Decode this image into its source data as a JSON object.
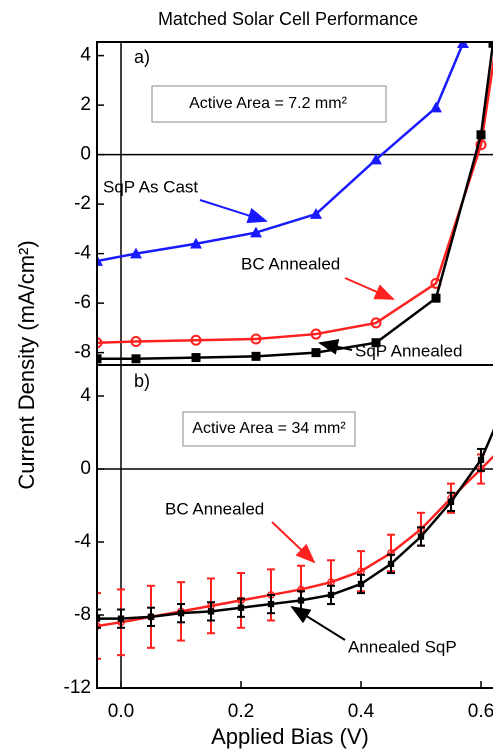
{
  "chart_data": [
    {
      "type": "line",
      "title": "Matched Solar Cell Performance",
      "ylabel": "Current Density (mA/cm²)",
      "annotations": [
        "a)",
        "Active Area = 7.2 mm²"
      ],
      "xlim": [
        -0.04,
        0.62
      ],
      "ylim": [
        -8.5,
        4.55
      ],
      "yticks": [
        -8,
        -6,
        -4,
        -2,
        0,
        2,
        4
      ],
      "series": [
        {
          "name": "SqP As Cast",
          "color": "#1a1aff",
          "marker": "triangle",
          "x": [
            -0.04,
            0.025,
            0.125,
            0.225,
            0.325,
            0.425,
            0.525,
            0.57
          ],
          "values": [
            -4.3,
            -4.0,
            -3.6,
            -3.15,
            -2.4,
            -0.2,
            1.9,
            4.5
          ]
        },
        {
          "name": "BC Annealed",
          "color": "#ff2020",
          "marker": "circle",
          "x": [
            -0.04,
            0.025,
            0.125,
            0.225,
            0.325,
            0.425,
            0.525,
            0.6,
            0.625
          ],
          "values": [
            -7.6,
            -7.55,
            -7.5,
            -7.45,
            -7.25,
            -6.8,
            -5.2,
            0.4,
            4.4
          ]
        },
        {
          "name": "SqP Annealed",
          "color": "#000000",
          "marker": "square",
          "x": [
            -0.04,
            0.025,
            0.125,
            0.225,
            0.325,
            0.425,
            0.525,
            0.6,
            0.62
          ],
          "values": [
            -8.25,
            -8.25,
            -8.2,
            -8.15,
            -8.0,
            -7.6,
            -5.8,
            0.8,
            4.5
          ]
        }
      ]
    },
    {
      "type": "errorbar",
      "xlabel": "Applied Bias (V)",
      "annotations": [
        "b)",
        "Active Area = 34 mm²"
      ],
      "xlim": [
        -0.04,
        0.62
      ],
      "ylim": [
        -12,
        5.7
      ],
      "xticks": [
        {
          "value": 0,
          "label": "0.0"
        },
        0.2,
        0.4,
        0.6
      ],
      "yticks": [
        -12,
        -8,
        -4,
        0,
        4
      ],
      "series": [
        {
          "name": "BC Annealed",
          "color": "#ff2020",
          "marker": "circle",
          "x": [
            -0.04,
            0.0,
            0.05,
            0.1,
            0.15,
            0.2,
            0.25,
            0.3,
            0.35,
            0.4,
            0.45,
            0.5,
            0.55,
            0.6,
            0.63
          ],
          "values": [
            -8.6,
            -8.4,
            -8.1,
            -7.8,
            -7.5,
            -7.2,
            -6.9,
            -6.6,
            -6.2,
            -5.6,
            -4.6,
            -3.3,
            -1.6,
            0.0,
            1.0
          ],
          "errors": [
            1.8,
            1.8,
            1.7,
            1.6,
            1.5,
            1.5,
            1.4,
            1.3,
            1.2,
            1.1,
            1.0,
            0.9,
            0.8,
            0.8,
            0.8
          ]
        },
        {
          "name": "Annealed SqP",
          "color": "#000000",
          "marker": "square",
          "x": [
            -0.04,
            0.0,
            0.05,
            0.1,
            0.15,
            0.2,
            0.25,
            0.3,
            0.35,
            0.4,
            0.45,
            0.5,
            0.55,
            0.6,
            0.63
          ],
          "values": [
            -8.2,
            -8.2,
            -8.1,
            -7.9,
            -7.8,
            -7.6,
            -7.4,
            -7.2,
            -6.9,
            -6.3,
            -5.2,
            -3.7,
            -1.8,
            0.5,
            2.8
          ],
          "errors": [
            0.5,
            0.5,
            0.5,
            0.5,
            0.5,
            0.5,
            0.5,
            0.5,
            0.5,
            0.5,
            0.5,
            0.5,
            0.5,
            0.6,
            0.7
          ]
        }
      ]
    }
  ]
}
